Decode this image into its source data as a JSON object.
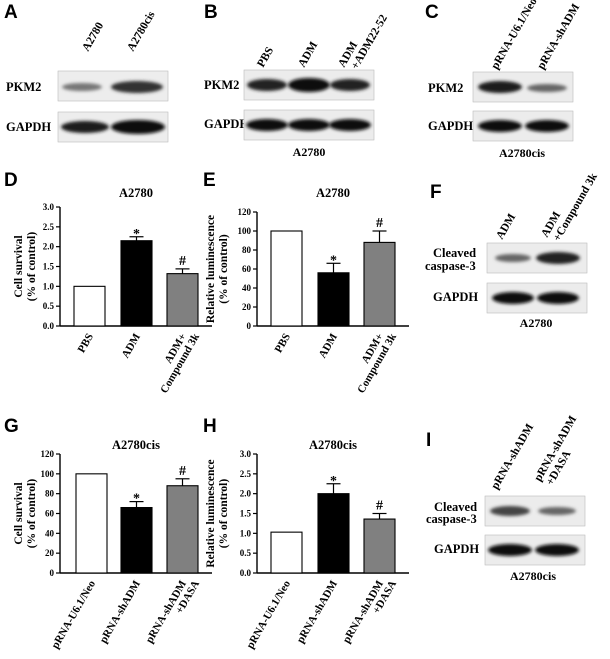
{
  "panels": {
    "A": {
      "label": "A",
      "lanes": [
        "A2780",
        "A2780cis"
      ],
      "rows": [
        "PKM2",
        "GAPDH"
      ],
      "caption": ""
    },
    "B": {
      "label": "B",
      "lanes": [
        "PBS",
        "ADM",
        "ADM",
        "+ADM22-52"
      ],
      "rows": [
        "PKM2",
        "GAPDH"
      ],
      "caption": "A2780"
    },
    "C": {
      "label": "C",
      "lanes": [
        "pRNA-U6.1/Neo",
        "pRNA-shADM"
      ],
      "rows": [
        "PKM2",
        "GAPDH"
      ],
      "caption": "A2780cis"
    },
    "D": {
      "label": "D"
    },
    "E": {
      "label": "E"
    },
    "F": {
      "label": "F",
      "lanes": [
        "ADM",
        "ADM",
        "+Compound 3k"
      ],
      "rows": [
        "Cleaved",
        "caspase-3",
        "GAPDH"
      ],
      "caption": "A2780"
    },
    "G": {
      "label": "G"
    },
    "H": {
      "label": "H"
    },
    "I": {
      "label": "I",
      "lanes": [
        "pRNA-shADM",
        "pRNA-shADM",
        "+DASA"
      ],
      "rows": [
        "Cleaved",
        "caspase-3",
        "GAPDH"
      ],
      "caption": "A2780cis"
    }
  },
  "chart_data": [
    {
      "panel": "D",
      "type": "bar",
      "title": "A2780",
      "ylabel": [
        "Cell survival",
        "(% of control)"
      ],
      "ylim": [
        0,
        3.0
      ],
      "yticks": [
        "0.0",
        "0.5",
        "1.0",
        "1.5",
        "2.0",
        "2.5",
        "3.0"
      ],
      "categories": [
        [
          "PBS"
        ],
        [
          "ADM"
        ],
        [
          "ADM+",
          "Compound 3k"
        ]
      ],
      "values": [
        1.0,
        2.15,
        1.32
      ],
      "errors": [
        0,
        0.1,
        0.12
      ],
      "fills": [
        "#ffffff",
        "#000000",
        "#808080"
      ],
      "annotations": [
        "",
        "*",
        "#"
      ]
    },
    {
      "panel": "E",
      "type": "bar",
      "title": "A2780",
      "ylabel": [
        "Relative luminescence",
        "(% of control)"
      ],
      "ylim": [
        0,
        120
      ],
      "yticks": [
        "0",
        "20",
        "40",
        "60",
        "80",
        "100",
        "120"
      ],
      "categories": [
        [
          "PBS"
        ],
        [
          "ADM"
        ],
        [
          "ADM+",
          "Compound 3k"
        ]
      ],
      "values": [
        100,
        56,
        88
      ],
      "errors": [
        0,
        10,
        12
      ],
      "fills": [
        "#ffffff",
        "#000000",
        "#808080"
      ],
      "annotations": [
        "",
        "*",
        "#"
      ]
    },
    {
      "panel": "G",
      "type": "bar",
      "title": "A2780cis",
      "ylabel": [
        "Cell survival",
        "(% of control)"
      ],
      "ylim": [
        0,
        120
      ],
      "yticks": [
        "0",
        "20",
        "40",
        "60",
        "80",
        "100",
        "120"
      ],
      "categories": [
        [
          "pRNA-U6.1/Neo"
        ],
        [
          "pRNA-shADM"
        ],
        [
          "pRNA-shADM",
          "+DASA"
        ]
      ],
      "values": [
        100,
        66,
        88
      ],
      "errors": [
        0,
        6,
        7
      ],
      "fills": [
        "#ffffff",
        "#000000",
        "#808080"
      ],
      "annotations": [
        "",
        "*",
        "#"
      ]
    },
    {
      "panel": "H",
      "type": "bar",
      "title": "A2780cis",
      "ylabel": [
        "Relative luminescence",
        "(% of control)"
      ],
      "ylim": [
        0,
        3.0
      ],
      "yticks": [
        "0.0",
        "0.5",
        "1.0",
        "1.5",
        "2.0",
        "2.5",
        "3.0"
      ],
      "categories": [
        [
          "pRNA-U6.1/Neo"
        ],
        [
          "pRNA-shADM"
        ],
        [
          "pRNA-shADM",
          "+DASA"
        ]
      ],
      "values": [
        1.03,
        2.0,
        1.36
      ],
      "errors": [
        0,
        0.25,
        0.14
      ],
      "fills": [
        "#ffffff",
        "#000000",
        "#808080"
      ],
      "annotations": [
        "",
        "*",
        "#"
      ]
    }
  ]
}
